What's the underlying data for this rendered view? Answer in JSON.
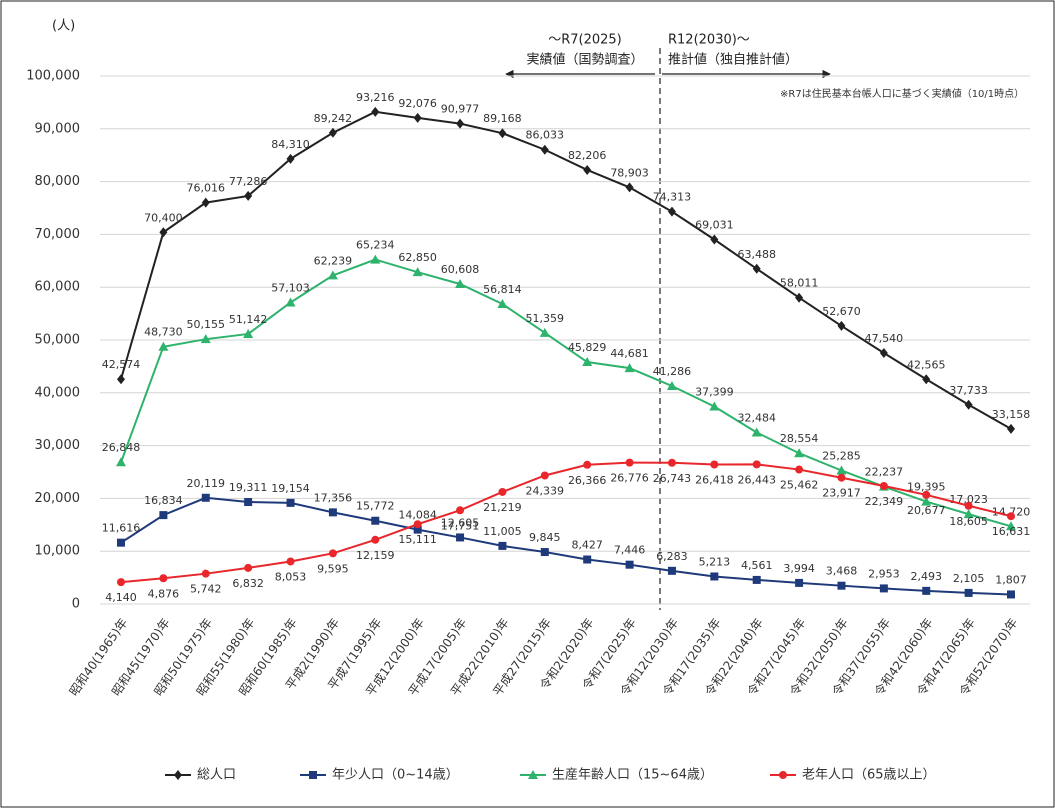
{
  "chart_data": {
    "type": "line",
    "y_axis_unit": "(人)",
    "annotations": [
      "～R7(2025)",
      "実績値（国勢調査）",
      "R12(2030)～",
      "推計値（独自推計値）",
      "※R7は住民基本台帳人口に基づく実績値（10/1時点）"
    ],
    "categories": [
      "昭和40(1965)年",
      "昭和45(1970)年",
      "昭和50(1975)年",
      "昭和55(1980)年",
      "昭和60(1985)年",
      "平成2(1990)年",
      "平成7(1995)年",
      "平成12(2000)年",
      "平成17(2005)年",
      "平成22(2010)年",
      "平成27(2015)年",
      "令和2(2020)年",
      "令和7(2025)年",
      "令和12(2030)年",
      "令和17(2035)年",
      "令和22(2040)年",
      "令和27(2045)年",
      "令和32(2050)年",
      "令和37(2055)年",
      "令和42(2060)年",
      "令和47(2065)年",
      "令和52(2070)年"
    ],
    "series": [
      {
        "name": "総人口",
        "color": "#222222",
        "marker": "diamond",
        "values": [
          42574,
          70400,
          76016,
          77286,
          84310,
          89242,
          93216,
          92076,
          90977,
          89168,
          86033,
          82206,
          78903,
          74313,
          69031,
          63488,
          58011,
          52670,
          47540,
          42565,
          37733,
          33158
        ],
        "value_labels": [
          "42,574",
          "70,400",
          "76,016",
          "77,286",
          "84,310",
          "89,242",
          "93,216",
          "92,076",
          "90,977",
          "89,168",
          "86,033",
          "82,206",
          "78,903",
          "74,313",
          "69,031",
          "63,488",
          "58,011",
          "52,670",
          "47,540",
          "42,565",
          "37,733",
          "33,158"
        ]
      },
      {
        "name": "年少人口（0~14歳）",
        "color": "#1f3a7a",
        "marker": "square",
        "values": [
          11616,
          16834,
          20119,
          19311,
          19154,
          17356,
          15772,
          14084,
          12605,
          11005,
          9845,
          8427,
          7446,
          6283,
          5213,
          4561,
          3994,
          3468,
          2953,
          2493,
          2105,
          1807
        ],
        "value_labels": [
          "11,616",
          "16,834",
          "20,119",
          "19,311",
          "19,154",
          "17,356",
          "15,772",
          "14,084",
          "12,605",
          "11,005",
          "9,845",
          "8,427",
          "7,446",
          "6,283",
          "5,213",
          "4,561",
          "3,994",
          "3,468",
          "2,953",
          "2,493",
          "2,105",
          "1,807"
        ]
      },
      {
        "name": "生産年齢人口（15~64歳）",
        "color": "#2db36b",
        "marker": "triangle",
        "values": [
          26848,
          48730,
          50155,
          51142,
          57103,
          62239,
          65234,
          62850,
          60608,
          56814,
          51359,
          45829,
          44681,
          41286,
          37399,
          32484,
          28554,
          25285,
          22237,
          19395,
          17023,
          14720
        ],
        "value_labels": [
          "26,848",
          "48,730",
          "50,155",
          "51,142",
          "57,103",
          "62,239",
          "65,234",
          "62,850",
          "60,608",
          "56,814",
          "51,359",
          "45,829",
          "44,681",
          "41,286",
          "37,399",
          "32,484",
          "28,554",
          "25,285",
          "22,237",
          "19,395",
          "17,023",
          "14,720"
        ]
      },
      {
        "name": "老年人口（65歳以上）",
        "color": "#e8262b",
        "marker": "circle",
        "values": [
          4140,
          4876,
          5742,
          6832,
          8053,
          9595,
          12159,
          15111,
          17751,
          21219,
          24339,
          26366,
          26776,
          26743,
          26418,
          26443,
          25462,
          23917,
          22349,
          20677,
          18605,
          16631
        ],
        "value_labels": [
          "4,140",
          "4,876",
          "5,742",
          "6,832",
          "8,053",
          "9,595",
          "12,159",
          "15,111",
          "17,751",
          "21,219",
          "24,339",
          "26,366",
          "26,776",
          "26,743",
          "26,418",
          "26,443",
          "25,462",
          "23,917",
          "22,349",
          "20,677",
          "18,605",
          "16,631"
        ]
      }
    ],
    "ylim": [
      0,
      100000
    ],
    "yticks": [
      0,
      {
        "value": 10000,
        "label": "10,000"
      },
      {
        "value": 20000,
        "label": "20,000"
      },
      {
        "value": 30000,
        "label": "30,000"
      },
      {
        "value": 40000,
        "label": "40,000"
      },
      {
        "value": 50000,
        "label": "50,000"
      },
      {
        "value": 60000,
        "label": "60,000"
      },
      {
        "value": 70000,
        "label": "70,000"
      },
      {
        "value": 80000,
        "label": "80,000"
      },
      {
        "value": 90000,
        "label": "90,000"
      },
      {
        "value": 100000,
        "label": "100,000"
      }
    ],
    "grid": true,
    "legend": "bottom"
  }
}
